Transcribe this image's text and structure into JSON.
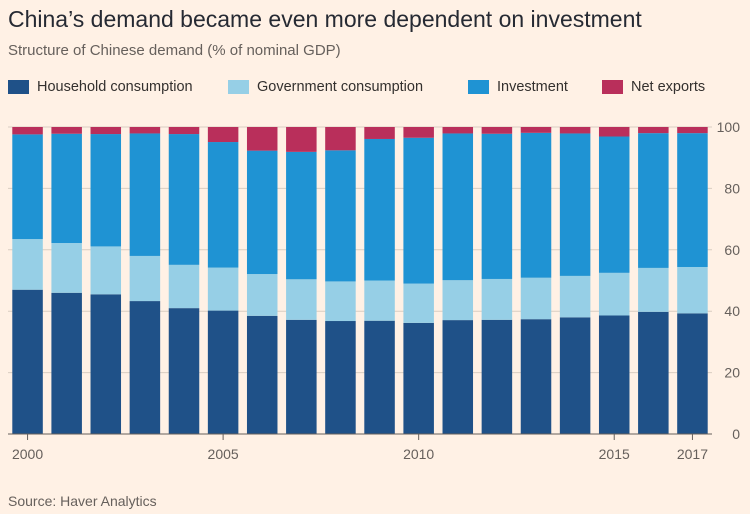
{
  "title": "China’s demand became even more dependent on investment",
  "subtitle": "Structure of Chinese demand (% of nominal GDP)",
  "source": "Source: Haver Analytics",
  "colors": {
    "household": "#1f5188",
    "government": "#96cfe6",
    "investment": "#1f93d3",
    "net_exports": "#b92f5b",
    "grid": "#d9cdc2",
    "axis": "#66605c"
  },
  "chart_data": {
    "type": "bar",
    "stacked": true,
    "categories": [
      "2000",
      "2001",
      "2002",
      "2003",
      "2004",
      "2005",
      "2006",
      "2007",
      "2008",
      "2009",
      "2010",
      "2011",
      "2012",
      "2013",
      "2014",
      "2015",
      "2016",
      "2017"
    ],
    "x_tick_labels": [
      {
        "index": 0,
        "label": "2000"
      },
      {
        "index": 5,
        "label": "2005"
      },
      {
        "index": 10,
        "label": "2010"
      },
      {
        "index": 15,
        "label": "2015"
      },
      {
        "index": 17,
        "label": "2017"
      }
    ],
    "series": [
      {
        "name": "Household consumption",
        "color_key": "household",
        "values": [
          47.0,
          46.0,
          45.5,
          43.3,
          41.0,
          40.2,
          38.5,
          37.2,
          36.8,
          36.9,
          36.2,
          37.1,
          37.2,
          37.4,
          38.0,
          38.6,
          39.8,
          39.3
        ]
      },
      {
        "name": "Government consumption",
        "color_key": "government",
        "values": [
          16.5,
          16.2,
          15.6,
          14.7,
          14.1,
          14.0,
          13.6,
          13.2,
          12.9,
          13.1,
          12.8,
          13.0,
          13.3,
          13.5,
          13.5,
          13.9,
          14.3,
          15.1
        ]
      },
      {
        "name": "Investment",
        "color_key": "investment",
        "values": [
          34.1,
          35.6,
          36.6,
          39.9,
          42.6,
          40.9,
          40.2,
          41.5,
          42.7,
          46.1,
          47.5,
          47.8,
          47.3,
          47.2,
          46.4,
          44.4,
          43.9,
          43.6
        ]
      },
      {
        "name": "Net exports",
        "color_key": "net_exports",
        "values": [
          2.4,
          2.2,
          2.3,
          2.1,
          2.3,
          4.9,
          7.7,
          8.1,
          7.6,
          3.9,
          3.5,
          2.1,
          2.2,
          1.9,
          2.1,
          3.1,
          2.0,
          2.0
        ]
      }
    ],
    "ylim": [
      0,
      100
    ],
    "y_ticks": [
      0,
      20,
      40,
      60,
      80,
      100
    ],
    "y_axis_side": "right",
    "grid": true,
    "legend_position": "top"
  }
}
